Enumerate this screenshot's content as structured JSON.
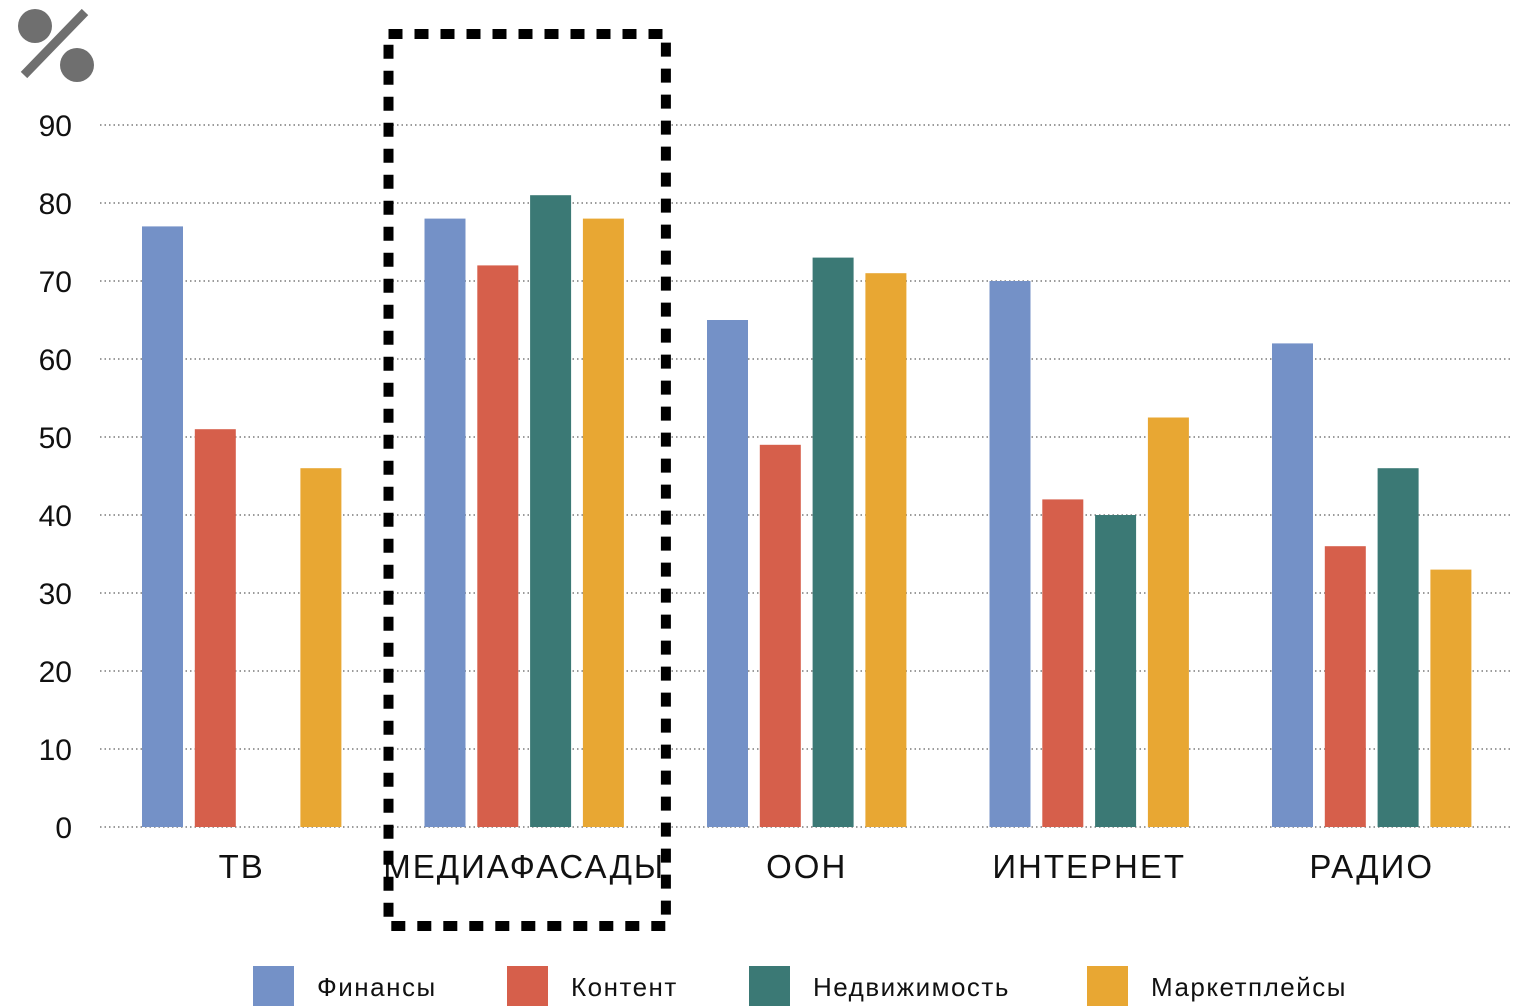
{
  "chart_data": {
    "type": "bar",
    "unit_symbol": "%",
    "categories": [
      "ТВ",
      "МЕДИАФАСАДЫ",
      "ООН",
      "ИНТЕРНЕТ",
      "РАДИО"
    ],
    "series": [
      {
        "name": "Финансы",
        "color": "#7491c7",
        "values": [
          77,
          78,
          65,
          70,
          62
        ]
      },
      {
        "name": "Контент",
        "color": "#d65f4b",
        "values": [
          51,
          72,
          49,
          42,
          36
        ]
      },
      {
        "name": "Недвижимость",
        "color": "#3b7975",
        "values": [
          null,
          81,
          73,
          40,
          46
        ]
      },
      {
        "name": "Маркетплейсы",
        "color": "#e8a733",
        "values": [
          46,
          78,
          71,
          52.5,
          33
        ]
      }
    ],
    "yticks": [
      0,
      10,
      20,
      30,
      40,
      50,
      60,
      70,
      80,
      90
    ],
    "ylim": [
      0,
      90
    ],
    "grid": true,
    "grid_style": "dotted",
    "legend_position": "bottom",
    "highlighted_category": "МЕДИАФАСАДЫ",
    "highlight_style": "dashed-box"
  },
  "colors": {
    "unit_icon": "#6f6f6f",
    "text": "#111111",
    "grid": "#7a7a7a",
    "highlight": "#000000"
  }
}
